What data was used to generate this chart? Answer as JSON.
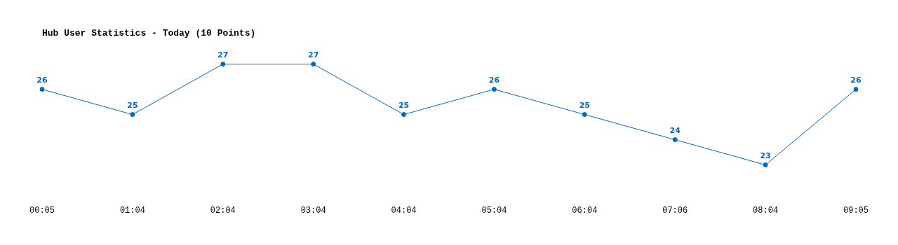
{
  "chart_data": {
    "type": "line",
    "title": "Hub User Statistics - Today (10 Points)",
    "categories": [
      "00:05",
      "01:04",
      "02:04",
      "03:04",
      "04:04",
      "05:04",
      "06:04",
      "07:06",
      "08:04",
      "09:05"
    ],
    "series": [
      {
        "color": "#0066cc",
        "values": [
          26,
          25,
          27,
          27,
          25,
          26,
          25,
          24,
          23,
          26
        ]
      }
    ],
    "data_labels": true,
    "grid": false,
    "legend": false,
    "marker": "circle",
    "line_style": "solid"
  }
}
